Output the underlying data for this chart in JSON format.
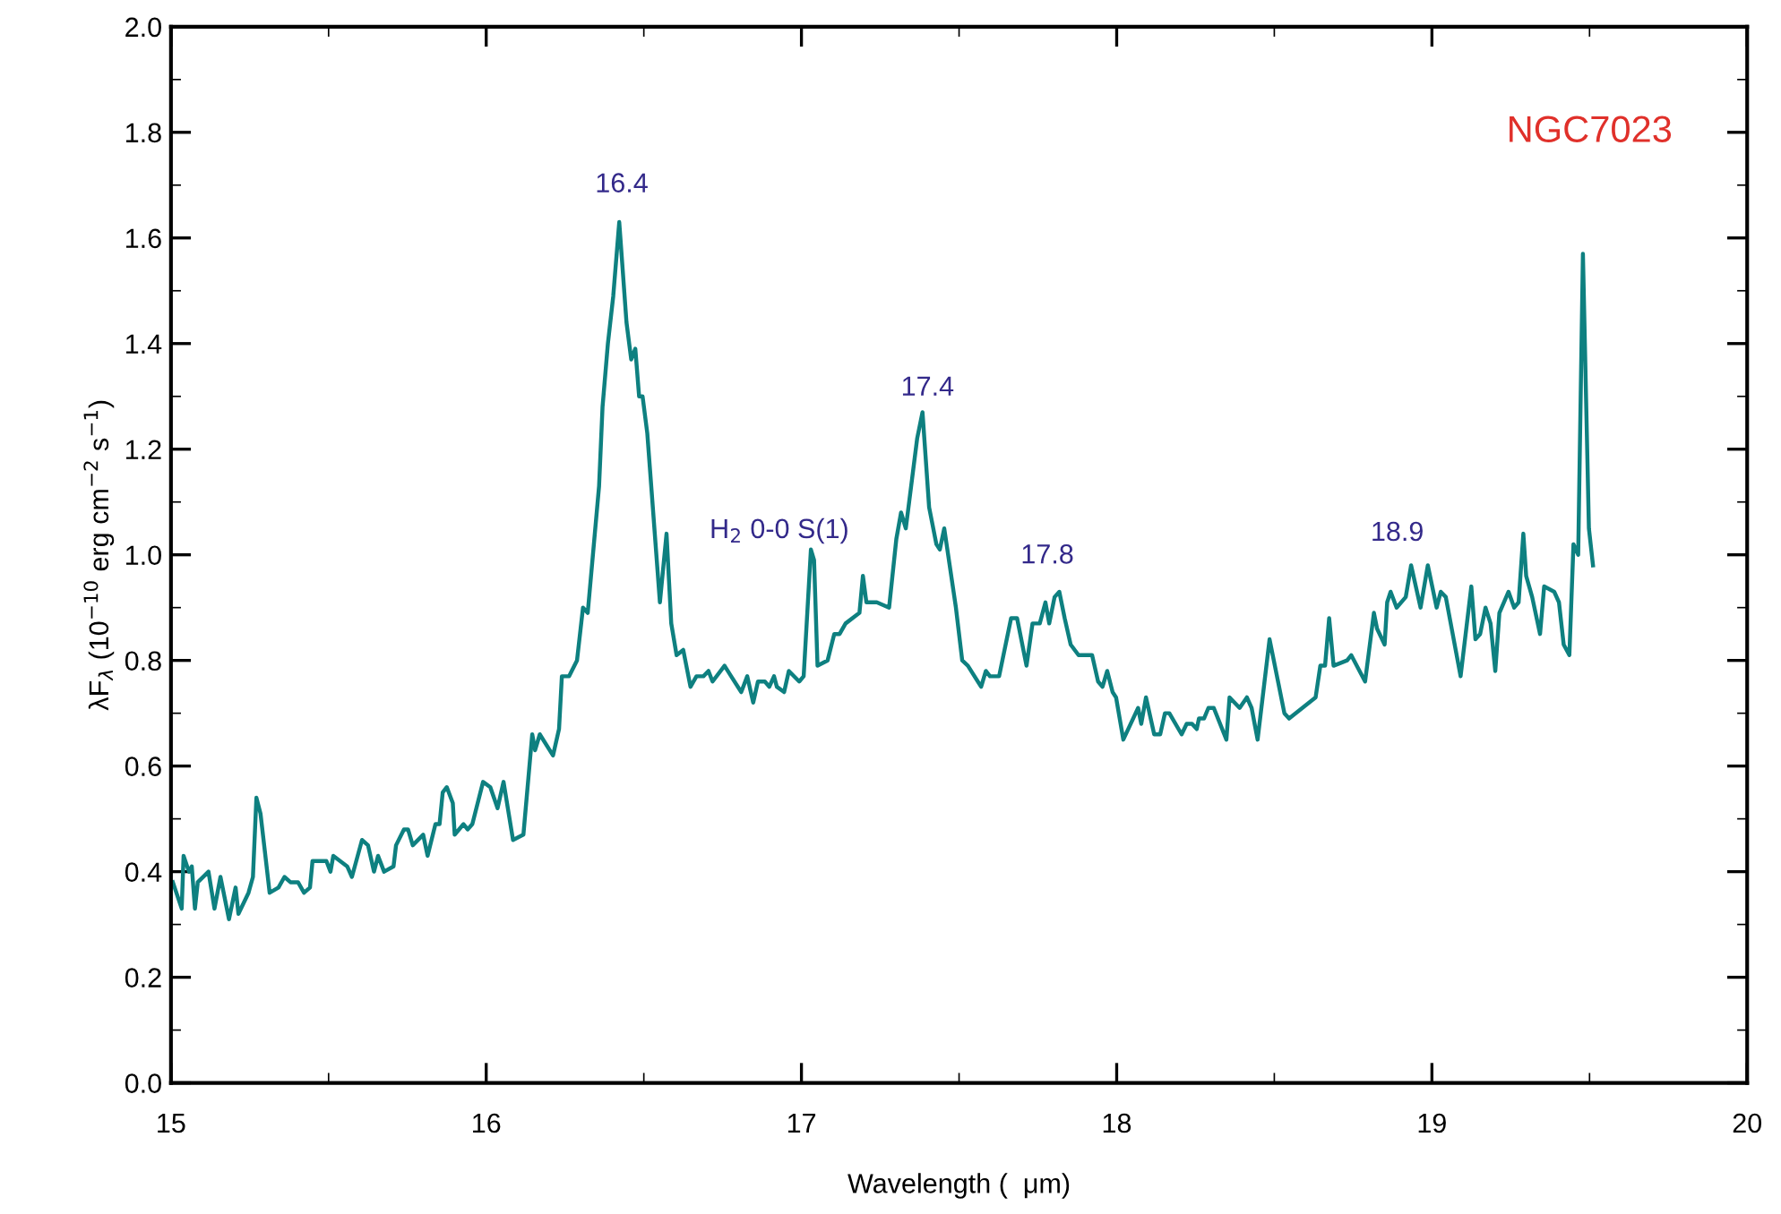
{
  "chart_data": {
    "type": "line",
    "xlabel": "Wavelength (  μm)",
    "ylabel": "λF$_{λ}$ (10$^{−10}$ erg cm$^{−2}$ s$^{−1}$)",
    "xlim": [
      15,
      20
    ],
    "xticks": [
      15,
      16,
      17,
      18,
      19,
      20
    ],
    "ylim": [
      0,
      2.0
    ],
    "yticks": [
      {
        "value": 0,
        "label": "0.0"
      },
      {
        "value": 0.2,
        "label": "0.2"
      },
      {
        "value": 0.4,
        "label": "0.4"
      },
      {
        "value": 0.6,
        "label": "0.6"
      },
      {
        "value": 0.8,
        "label": "0.8"
      },
      {
        "value": 1.0,
        "label": "1.0"
      },
      {
        "value": 1.2,
        "label": "1.2"
      },
      {
        "value": 1.4,
        "label": "1.4"
      },
      {
        "value": 1.6,
        "label": "1.6"
      },
      {
        "value": 1.8,
        "label": "1.8"
      },
      {
        "value": 2.0,
        "label": "2.0"
      }
    ],
    "grid": false,
    "marker": "none",
    "line_style": "solid",
    "annotations": [
      "NGC7023",
      "16.4",
      "H$_{2}$ 0-0 S(1)",
      "17.4",
      "17.8",
      "18.9"
    ],
    "series": [
      {
        "color": "#0e8080",
        "x": [
          15.006,
          15.034,
          15.04,
          15.057,
          15.066,
          15.076,
          15.085,
          15.119,
          15.138,
          15.157,
          15.184,
          15.205,
          15.214,
          15.246,
          15.26,
          15.271,
          15.284,
          15.313,
          15.341,
          15.36,
          15.379,
          15.403,
          15.422,
          15.441,
          15.449,
          15.493,
          15.506,
          15.515,
          15.559,
          15.574,
          15.606,
          15.625,
          15.644,
          15.657,
          15.676,
          15.706,
          15.714,
          15.739,
          15.752,
          15.767,
          15.8,
          15.814,
          15.839,
          15.852,
          15.862,
          15.875,
          15.894,
          15.9,
          15.928,
          15.941,
          15.956,
          15.99,
          16.013,
          16.036,
          16.055,
          16.085,
          16.118,
          16.146,
          16.155,
          16.17,
          16.212,
          16.231,
          16.24,
          16.263,
          16.288,
          16.307,
          16.322,
          16.358,
          16.369,
          16.386,
          16.403,
          16.422,
          16.445,
          16.46,
          16.473,
          16.485,
          16.496,
          16.511,
          16.551,
          16.572,
          16.587,
          16.604,
          16.625,
          16.648,
          16.667,
          16.689,
          16.705,
          16.718,
          16.756,
          16.777,
          16.809,
          16.828,
          16.847,
          16.862,
          16.884,
          16.898,
          16.913,
          16.922,
          16.945,
          16.96,
          16.993,
          17.007,
          17.03,
          17.04,
          17.051,
          17.083,
          17.104,
          17.121,
          17.14,
          17.184,
          17.195,
          17.206,
          17.239,
          17.278,
          17.301,
          17.316,
          17.331,
          17.348,
          17.367,
          17.384,
          17.405,
          17.428,
          17.439,
          17.453,
          17.49,
          17.51,
          17.528,
          17.57,
          17.585,
          17.598,
          17.61,
          17.627,
          17.665,
          17.684,
          17.714,
          17.733,
          17.756,
          17.774,
          17.786,
          17.803,
          17.818,
          17.835,
          17.854,
          17.879,
          17.922,
          17.941,
          17.955,
          17.97,
          17.987,
          17.998,
          18.021,
          18.068,
          18.078,
          18.093,
          18.119,
          18.138,
          18.153,
          18.167,
          18.206,
          18.222,
          18.239,
          18.254,
          18.261,
          18.277,
          18.291,
          18.308,
          18.348,
          18.358,
          18.39,
          18.413,
          18.428,
          18.447,
          18.485,
          18.532,
          18.547,
          18.631,
          18.646,
          18.661,
          18.674,
          18.688,
          18.731,
          18.744,
          18.788,
          18.816,
          18.826,
          18.85,
          18.858,
          18.869,
          18.888,
          18.917,
          18.934,
          18.964,
          18.987,
          19.015,
          19.028,
          19.044,
          19.091,
          19.125,
          19.138,
          19.153,
          19.17,
          19.186,
          19.201,
          19.214,
          19.243,
          19.261,
          19.275,
          19.29,
          19.299,
          19.318,
          19.343,
          19.356,
          19.388,
          19.403,
          19.418,
          19.436,
          19.449,
          19.464,
          19.479,
          19.498,
          19.511
        ],
        "values": [
          0.38,
          0.33,
          0.43,
          0.4,
          0.41,
          0.33,
          0.38,
          0.4,
          0.33,
          0.39,
          0.31,
          0.37,
          0.32,
          0.36,
          0.39,
          0.54,
          0.51,
          0.36,
          0.37,
          0.39,
          0.38,
          0.38,
          0.36,
          0.37,
          0.42,
          0.42,
          0.4,
          0.43,
          0.41,
          0.39,
          0.46,
          0.45,
          0.4,
          0.43,
          0.4,
          0.41,
          0.45,
          0.48,
          0.48,
          0.45,
          0.47,
          0.43,
          0.49,
          0.49,
          0.55,
          0.56,
          0.53,
          0.47,
          0.49,
          0.48,
          0.49,
          0.57,
          0.56,
          0.52,
          0.57,
          0.46,
          0.47,
          0.66,
          0.63,
          0.66,
          0.62,
          0.67,
          0.77,
          0.77,
          0.8,
          0.9,
          0.89,
          1.13,
          1.28,
          1.4,
          1.49,
          1.63,
          1.44,
          1.37,
          1.39,
          1.3,
          1.3,
          1.23,
          0.91,
          1.04,
          0.87,
          0.81,
          0.82,
          0.75,
          0.77,
          0.77,
          0.78,
          0.76,
          0.79,
          0.77,
          0.74,
          0.77,
          0.72,
          0.76,
          0.76,
          0.75,
          0.77,
          0.75,
          0.74,
          0.78,
          0.76,
          0.77,
          1.01,
          0.99,
          0.79,
          0.8,
          0.85,
          0.85,
          0.87,
          0.89,
          0.96,
          0.91,
          0.91,
          0.9,
          1.03,
          1.08,
          1.05,
          1.13,
          1.22,
          1.27,
          1.09,
          1.02,
          1.01,
          1.05,
          0.9,
          0.8,
          0.79,
          0.75,
          0.78,
          0.77,
          0.77,
          0.77,
          0.88,
          0.88,
          0.79,
          0.87,
          0.87,
          0.91,
          0.87,
          0.92,
          0.93,
          0.88,
          0.83,
          0.81,
          0.81,
          0.76,
          0.75,
          0.78,
          0.74,
          0.73,
          0.65,
          0.71,
          0.68,
          0.73,
          0.66,
          0.66,
          0.7,
          0.7,
          0.66,
          0.68,
          0.68,
          0.67,
          0.69,
          0.69,
          0.71,
          0.71,
          0.65,
          0.73,
          0.71,
          0.73,
          0.71,
          0.65,
          0.84,
          0.7,
          0.69,
          0.73,
          0.79,
          0.79,
          0.88,
          0.79,
          0.8,
          0.81,
          0.76,
          0.89,
          0.86,
          0.83,
          0.91,
          0.93,
          0.9,
          0.92,
          0.98,
          0.9,
          0.98,
          0.9,
          0.93,
          0.92,
          0.77,
          0.94,
          0.84,
          0.85,
          0.9,
          0.87,
          0.78,
          0.89,
          0.93,
          0.9,
          0.91,
          1.04,
          0.96,
          0.92,
          0.85,
          0.94,
          0.93,
          0.91,
          0.83,
          0.81,
          1.02,
          1.0,
          1.57,
          1.05,
          0.98
        ]
      }
    ]
  }
}
